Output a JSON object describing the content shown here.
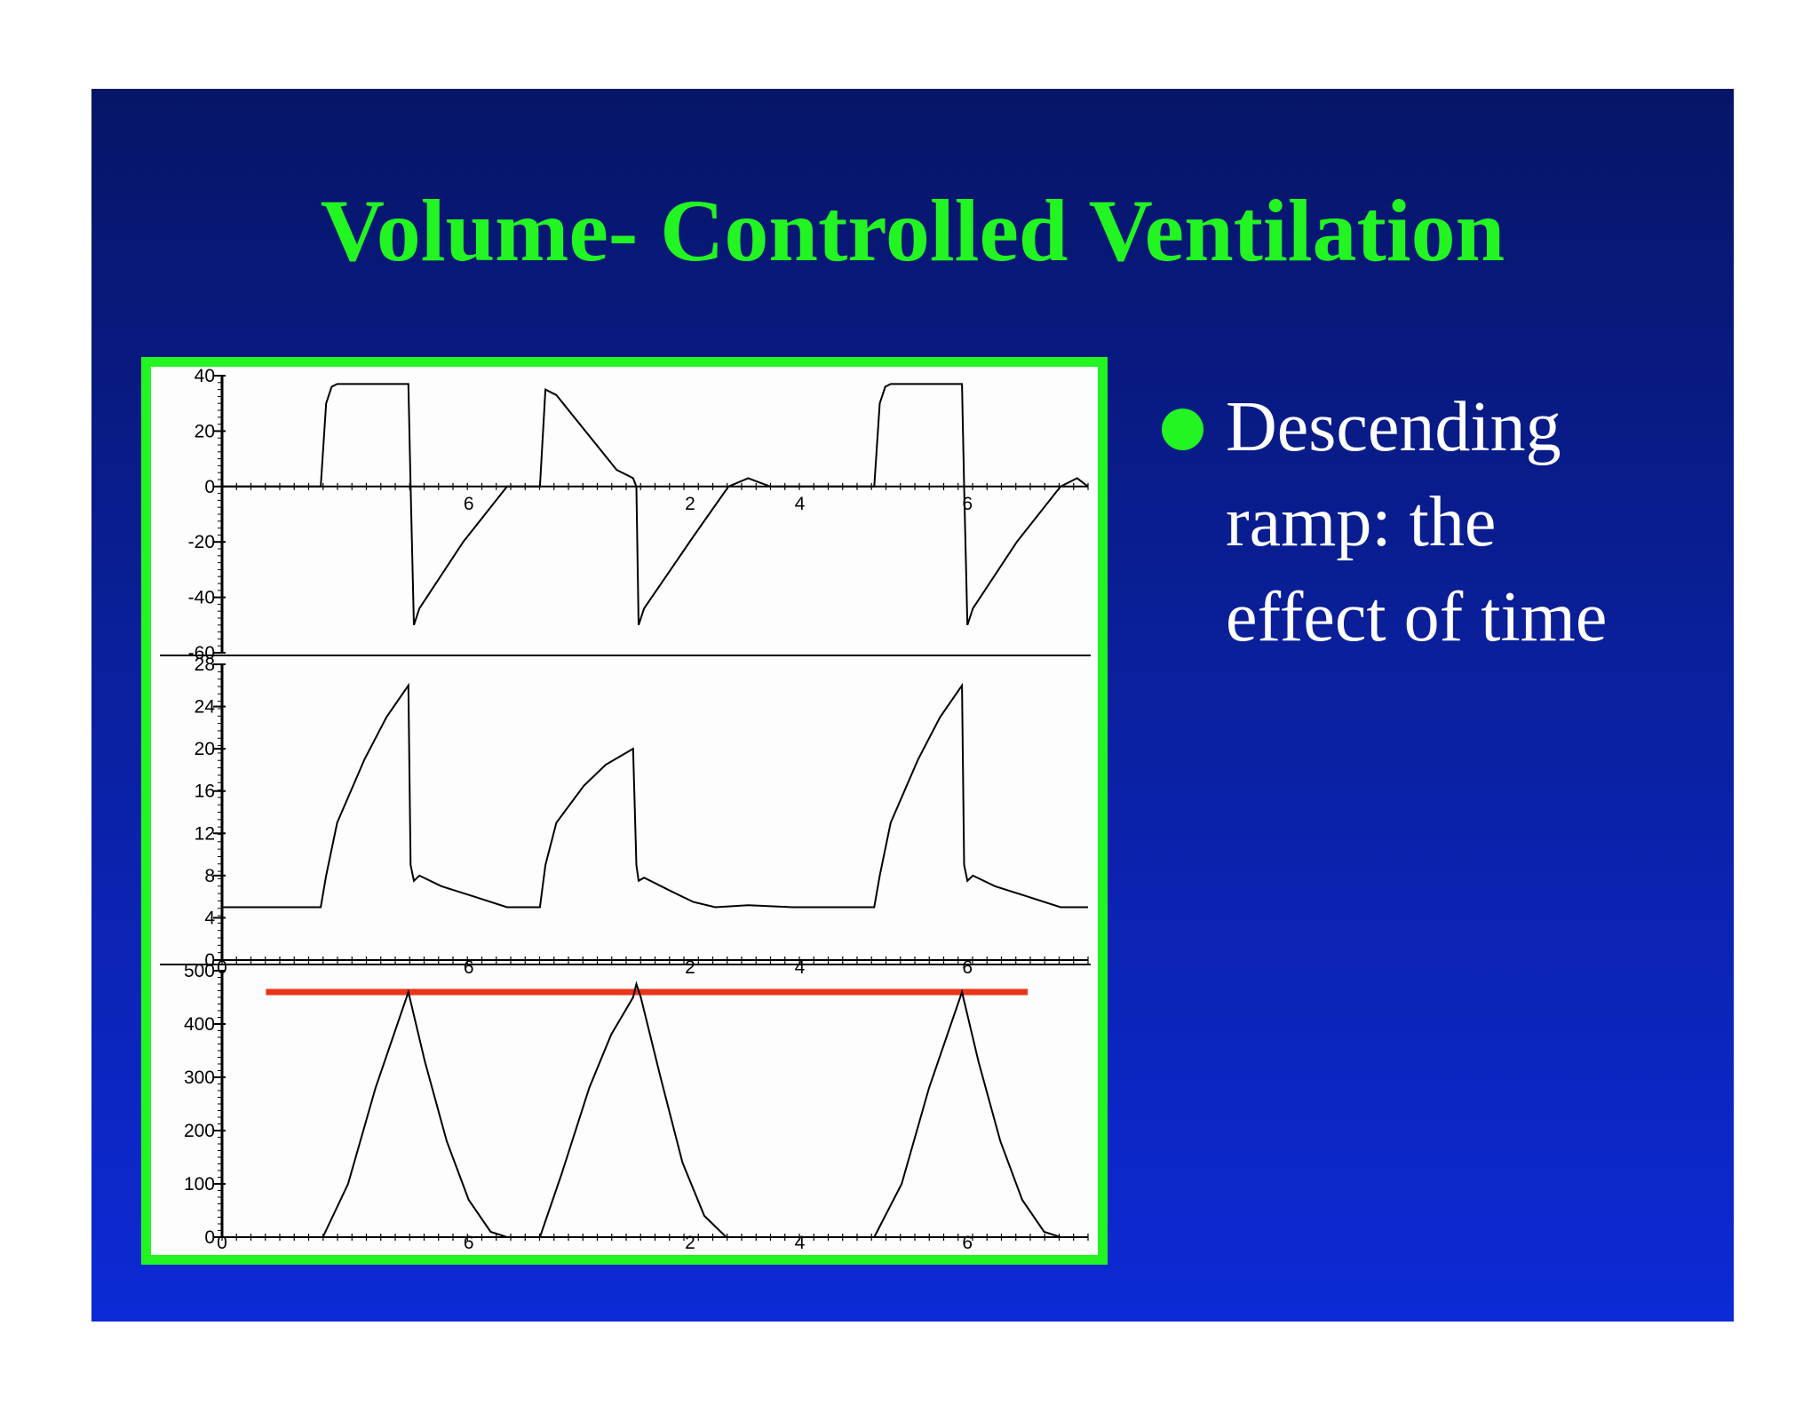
{
  "slide": {
    "title": "Volume- Controlled Ventilation",
    "background_top": "#061567",
    "background_bottom": "#0c2ad6",
    "accent": "#22f522"
  },
  "bullet": {
    "icon": "bullet-dot-icon",
    "lines": [
      "Descending",
      "ramp: the",
      "effect of time"
    ]
  },
  "chart_data": [
    {
      "type": "line",
      "title": "",
      "xlabel": "",
      "ylabel": "",
      "ylim": [
        -60,
        40
      ],
      "y_ticks": [
        "40",
        "20",
        "0",
        "-20",
        "-40",
        "-60"
      ],
      "x_tick_labels": [
        "6",
        "2",
        "4",
        "6"
      ],
      "grid": false,
      "series": [
        {
          "values": [
            {
              "t": 0.0,
              "y": 0
            },
            {
              "t": 0.9,
              "y": 0
            },
            {
              "t": 0.95,
              "y": 30
            },
            {
              "t": 1.0,
              "y": 36
            },
            {
              "t": 1.05,
              "y": 37
            },
            {
              "t": 1.7,
              "y": 37
            },
            {
              "t": 1.72,
              "y": 0
            },
            {
              "t": 1.75,
              "y": -50
            },
            {
              "t": 1.8,
              "y": -44
            },
            {
              "t": 2.2,
              "y": -20
            },
            {
              "t": 2.6,
              "y": 0
            },
            {
              "t": 2.9,
              "y": 0
            },
            {
              "t": 2.95,
              "y": 35
            },
            {
              "t": 3.05,
              "y": 33
            },
            {
              "t": 3.6,
              "y": 6
            },
            {
              "t": 3.75,
              "y": 3
            },
            {
              "t": 3.78,
              "y": 0
            },
            {
              "t": 3.8,
              "y": -50
            },
            {
              "t": 3.85,
              "y": -44
            },
            {
              "t": 4.3,
              "y": -18
            },
            {
              "t": 4.62,
              "y": 0
            },
            {
              "t": 4.8,
              "y": 3
            },
            {
              "t": 5.0,
              "y": 0
            },
            {
              "t": 5.95,
              "y": 0
            },
            {
              "t": 6.0,
              "y": 30
            },
            {
              "t": 6.05,
              "y": 36
            },
            {
              "t": 6.1,
              "y": 37
            },
            {
              "t": 6.75,
              "y": 37
            },
            {
              "t": 6.77,
              "y": 0
            },
            {
              "t": 6.8,
              "y": -50
            },
            {
              "t": 6.85,
              "y": -44
            },
            {
              "t": 7.25,
              "y": -20
            },
            {
              "t": 7.65,
              "y": 0
            },
            {
              "t": 7.8,
              "y": 3
            },
            {
              "t": 7.9,
              "y": 0
            }
          ]
        }
      ]
    },
    {
      "type": "line",
      "title": "",
      "xlabel": "",
      "ylabel": "",
      "ylim": [
        0,
        28
      ],
      "y_ticks": [
        "28",
        "24",
        "20",
        "16",
        "12",
        "8",
        "4",
        "0"
      ],
      "x_tick_labels": [
        "0",
        "6",
        "2",
        "4",
        "6"
      ],
      "grid": false,
      "series": [
        {
          "values": [
            {
              "t": 0.0,
              "y": 5
            },
            {
              "t": 0.9,
              "y": 5
            },
            {
              "t": 0.95,
              "y": 8
            },
            {
              "t": 1.05,
              "y": 13
            },
            {
              "t": 1.3,
              "y": 19
            },
            {
              "t": 1.5,
              "y": 23
            },
            {
              "t": 1.7,
              "y": 26
            },
            {
              "t": 1.72,
              "y": 9
            },
            {
              "t": 1.75,
              "y": 7.5
            },
            {
              "t": 1.8,
              "y": 8
            },
            {
              "t": 2.0,
              "y": 7
            },
            {
              "t": 2.3,
              "y": 6
            },
            {
              "t": 2.6,
              "y": 5
            },
            {
              "t": 2.9,
              "y": 5
            },
            {
              "t": 2.95,
              "y": 9
            },
            {
              "t": 3.05,
              "y": 13
            },
            {
              "t": 3.3,
              "y": 16.5
            },
            {
              "t": 3.5,
              "y": 18.5
            },
            {
              "t": 3.75,
              "y": 20
            },
            {
              "t": 3.78,
              "y": 9
            },
            {
              "t": 3.8,
              "y": 7.5
            },
            {
              "t": 3.85,
              "y": 7.8
            },
            {
              "t": 4.1,
              "y": 6.5
            },
            {
              "t": 4.3,
              "y": 5.5
            },
            {
              "t": 4.5,
              "y": 5
            },
            {
              "t": 4.8,
              "y": 5.2
            },
            {
              "t": 5.2,
              "y": 5
            },
            {
              "t": 5.95,
              "y": 5
            },
            {
              "t": 6.0,
              "y": 8
            },
            {
              "t": 6.1,
              "y": 13
            },
            {
              "t": 6.35,
              "y": 19
            },
            {
              "t": 6.55,
              "y": 23
            },
            {
              "t": 6.75,
              "y": 26
            },
            {
              "t": 6.77,
              "y": 9
            },
            {
              "t": 6.8,
              "y": 7.5
            },
            {
              "t": 6.85,
              "y": 8
            },
            {
              "t": 7.05,
              "y": 7
            },
            {
              "t": 7.35,
              "y": 6
            },
            {
              "t": 7.65,
              "y": 5
            },
            {
              "t": 7.9,
              "y": 5
            }
          ]
        }
      ]
    },
    {
      "type": "line",
      "title": "",
      "xlabel": "",
      "ylabel": "",
      "ylim": [
        0,
        500
      ],
      "y_ticks": [
        "500",
        "400",
        "300",
        "200",
        "100",
        "0"
      ],
      "x_tick_labels": [
        "0",
        "6",
        "2",
        "4",
        "6"
      ],
      "grid": false,
      "reference_line": {
        "y": 460,
        "t_start": 0.4,
        "t_end": 7.35,
        "color": "#ec3418"
      },
      "series": [
        {
          "values": [
            {
              "t": 0.0,
              "y": 0
            },
            {
              "t": 0.92,
              "y": 0
            },
            {
              "t": 1.15,
              "y": 100
            },
            {
              "t": 1.4,
              "y": 280
            },
            {
              "t": 1.7,
              "y": 460
            },
            {
              "t": 1.85,
              "y": 330
            },
            {
              "t": 2.05,
              "y": 180
            },
            {
              "t": 2.25,
              "y": 70
            },
            {
              "t": 2.45,
              "y": 10
            },
            {
              "t": 2.6,
              "y": 0
            },
            {
              "t": 2.9,
              "y": 0
            },
            {
              "t": 3.1,
              "y": 120
            },
            {
              "t": 3.35,
              "y": 280
            },
            {
              "t": 3.55,
              "y": 380
            },
            {
              "t": 3.75,
              "y": 450
            },
            {
              "t": 3.78,
              "y": 475
            },
            {
              "t": 3.82,
              "y": 450
            },
            {
              "t": 4.0,
              "y": 300
            },
            {
              "t": 4.2,
              "y": 140
            },
            {
              "t": 4.4,
              "y": 40
            },
            {
              "t": 4.6,
              "y": 0
            },
            {
              "t": 5.95,
              "y": 0
            },
            {
              "t": 6.2,
              "y": 100
            },
            {
              "t": 6.45,
              "y": 280
            },
            {
              "t": 6.75,
              "y": 460
            },
            {
              "t": 6.9,
              "y": 330
            },
            {
              "t": 7.1,
              "y": 180
            },
            {
              "t": 7.3,
              "y": 70
            },
            {
              "t": 7.5,
              "y": 10
            },
            {
              "t": 7.65,
              "y": 0
            },
            {
              "t": 7.9,
              "y": 0
            }
          ]
        }
      ]
    }
  ]
}
